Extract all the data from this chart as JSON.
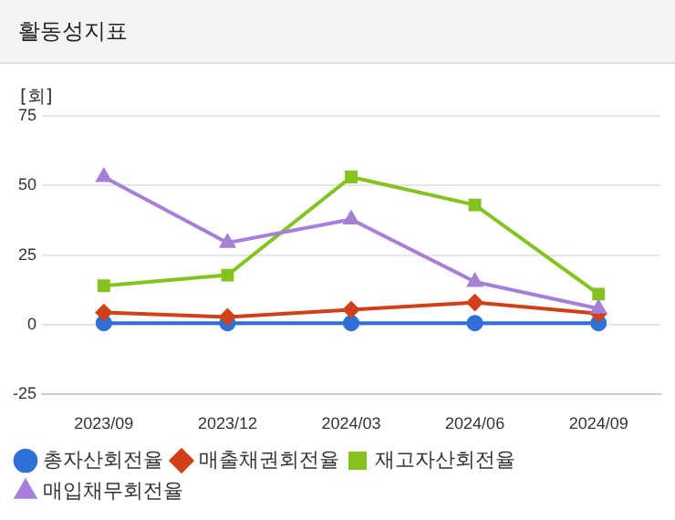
{
  "chart_data": {
    "type": "line",
    "title": "활동성지표",
    "ylabel": "[회]",
    "categories": [
      "2023/09",
      "2023/12",
      "2024/03",
      "2024/06",
      "2024/09"
    ],
    "series": [
      {
        "name": "총자산회전율",
        "color": "#2f6fd6",
        "marker": "circle",
        "values": [
          0.6,
          0.6,
          0.6,
          0.6,
          0.6
        ]
      },
      {
        "name": "매출채권회전율",
        "color": "#d2401a",
        "marker": "diamond",
        "values": [
          4.4,
          2.8,
          5.4,
          8,
          4
        ]
      },
      {
        "name": "재고자산회전율",
        "color": "#84c21e",
        "marker": "square",
        "values": [
          14,
          17.8,
          53,
          43,
          11
        ]
      },
      {
        "name": "매입채무회전율",
        "color": "#a67fd8",
        "marker": "triangle",
        "values": [
          53,
          29.4,
          37.8,
          15.4,
          5.8
        ]
      }
    ],
    "ylim": [
      -25,
      75
    ],
    "yticks": [
      -25,
      0,
      25,
      50,
      75
    ],
    "grid": "y",
    "legend": "bottom"
  }
}
